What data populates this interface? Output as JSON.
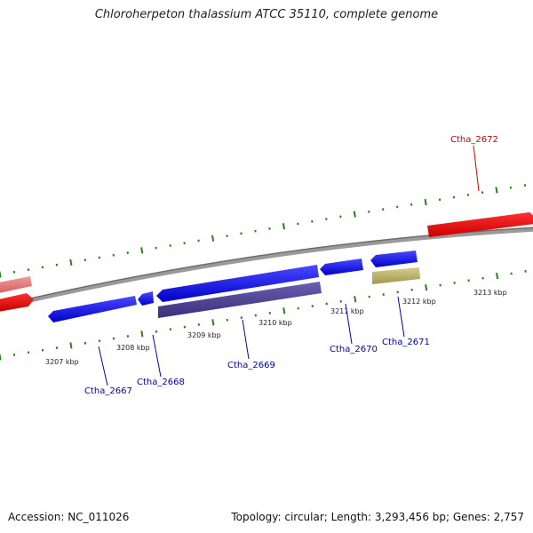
{
  "title": "Chloroherpeton thalassium ATCC 35110, complete genome",
  "footer": {
    "accession": "Accession: NC_011026",
    "stats": "Topology: circular; Length: 3,293,456 bp; Genes: 2,757"
  },
  "colors": {
    "forward_gene": "#0000ee",
    "reverse_gene": "#ee0000",
    "reverse_faded": "#e87878",
    "operon_dark": "#4a3f8c",
    "operon_olive": "#b5ad6a",
    "backbone": "#808080",
    "tick": "#2e7d1e",
    "forward_label": "#0000aa",
    "reverse_label": "#cc0000"
  },
  "ticks": [
    "3207 kbp",
    "3208 kbp",
    "3209 kbp",
    "3210 kbp",
    "3211 kbp",
    "3212 kbp",
    "3213 kbp"
  ],
  "genes": [
    {
      "id": "Ctha_2667",
      "strand": "forward",
      "label": "Ctha_2667"
    },
    {
      "id": "Ctha_2668",
      "strand": "forward",
      "label": "Ctha_2668"
    },
    {
      "id": "Ctha_2669",
      "strand": "forward",
      "label": "Ctha_2669"
    },
    {
      "id": "Ctha_2670",
      "strand": "forward",
      "label": "Ctha_2670"
    },
    {
      "id": "Ctha_2671",
      "strand": "forward",
      "label": "Ctha_2671"
    },
    {
      "id": "Ctha_2672",
      "strand": "reverse",
      "label": "Ctha_2672"
    }
  ]
}
